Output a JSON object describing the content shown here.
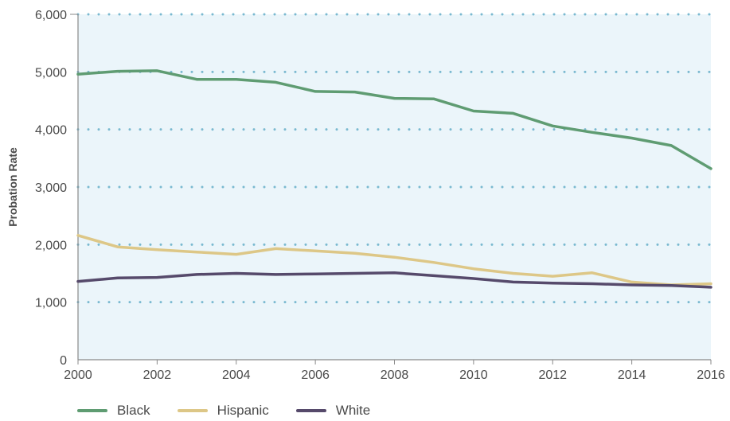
{
  "chart_data": {
    "type": "line",
    "title": "",
    "xlabel": "",
    "ylabel": "Probation Rate",
    "x": [
      2000,
      2001,
      2002,
      2003,
      2004,
      2005,
      2006,
      2007,
      2008,
      2009,
      2010,
      2011,
      2012,
      2013,
      2014,
      2015,
      2016
    ],
    "xlim": [
      2000,
      2016
    ],
    "ylim": [
      0,
      6000
    ],
    "x_ticks": [
      2000,
      2002,
      2004,
      2006,
      2008,
      2010,
      2012,
      2014,
      2016
    ],
    "y_ticks": [
      0,
      1000,
      2000,
      3000,
      4000,
      5000,
      6000
    ],
    "x_tick_labels": [
      "2000",
      "2002",
      "2004",
      "2006",
      "2008",
      "2010",
      "2012",
      "2014",
      "2016"
    ],
    "y_tick_labels": [
      "0",
      "1,000",
      "2,000",
      "3,000",
      "4,000",
      "5,000",
      "6,000"
    ],
    "grid": "horizontal dotted",
    "legend_position": "bottom-left",
    "plot_background": "#ebf5fa",
    "grid_color": "#7ab9d0",
    "series": [
      {
        "name": "Black",
        "color": "#5f9c72",
        "values": [
          4960,
          5010,
          5020,
          4870,
          4870,
          4820,
          4660,
          4650,
          4540,
          4530,
          4320,
          4280,
          4060,
          3950,
          3850,
          3720,
          3320
        ]
      },
      {
        "name": "Hispanic",
        "color": "#ddc787",
        "values": [
          2160,
          1960,
          1910,
          1870,
          1830,
          1930,
          1890,
          1850,
          1780,
          1690,
          1580,
          1500,
          1450,
          1510,
          1350,
          1300,
          1320
        ]
      },
      {
        "name": "White",
        "color": "#564a6b",
        "values": [
          1360,
          1420,
          1430,
          1480,
          1500,
          1480,
          1490,
          1500,
          1510,
          1460,
          1410,
          1350,
          1330,
          1320,
          1300,
          1290,
          1260
        ]
      }
    ]
  }
}
